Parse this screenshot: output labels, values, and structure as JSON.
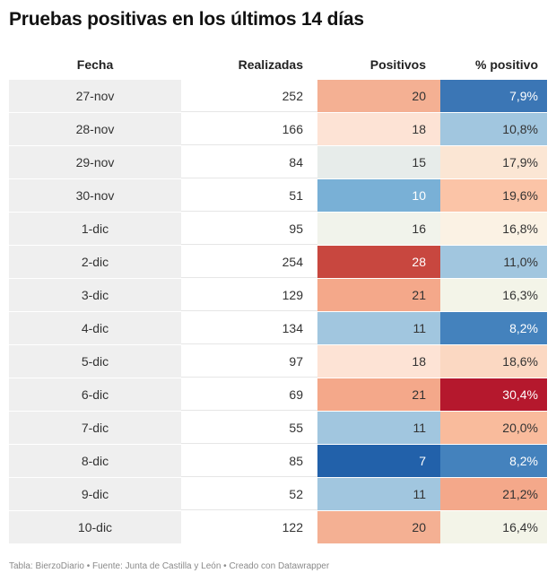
{
  "title": "Pruebas positivas en los últimos 14 días",
  "footer": "Tabla: BierzoDiario • Fuente: Junta de Castilla y León • Creado con Datawrapper",
  "chart_data": {
    "type": "table",
    "columns": [
      "Fecha",
      "Realizadas",
      "Positivos",
      "% positivo"
    ],
    "rows": [
      {
        "fecha": "27-nov",
        "realizadas": "252",
        "positivos": "20",
        "pct": "7,9%",
        "pos_color": "#f4b093",
        "pct_color": "#3b76b5",
        "pos_text": "#333333",
        "pct_text": "#ffffff"
      },
      {
        "fecha": "28-nov",
        "realizadas": "166",
        "positivos": "18",
        "pct": "10,8%",
        "pos_color": "#fde3d5",
        "pct_color": "#a1c6df",
        "pos_text": "#333333",
        "pct_text": "#333333"
      },
      {
        "fecha": "29-nov",
        "realizadas": "84",
        "positivos": "15",
        "pct": "17,9%",
        "pos_color": "#e7ecea",
        "pct_color": "#fbe6d4",
        "pos_text": "#333333",
        "pct_text": "#333333"
      },
      {
        "fecha": "30-nov",
        "realizadas": "51",
        "positivos": "10",
        "pct": "19,6%",
        "pos_color": "#79b0d6",
        "pct_color": "#fbc4a7",
        "pos_text": "#ffffff",
        "pct_text": "#333333"
      },
      {
        "fecha": "1-dic",
        "realizadas": "95",
        "positivos": "16",
        "pct": "16,8%",
        "pos_color": "#f1f3eb",
        "pct_color": "#fbf2e4",
        "pos_text": "#333333",
        "pct_text": "#333333"
      },
      {
        "fecha": "2-dic",
        "realizadas": "254",
        "positivos": "28",
        "pct": "11,0%",
        "pos_color": "#c8473f",
        "pct_color": "#a1c6df",
        "pos_text": "#ffffff",
        "pct_text": "#333333"
      },
      {
        "fecha": "3-dic",
        "realizadas": "129",
        "positivos": "21",
        "pct": "16,3%",
        "pos_color": "#f4a88a",
        "pct_color": "#f3f4e8",
        "pos_text": "#333333",
        "pct_text": "#333333"
      },
      {
        "fecha": "4-dic",
        "realizadas": "134",
        "positivos": "11",
        "pct": "8,2%",
        "pos_color": "#a1c6df",
        "pct_color": "#4482bd",
        "pos_text": "#333333",
        "pct_text": "#ffffff"
      },
      {
        "fecha": "5-dic",
        "realizadas": "97",
        "positivos": "18",
        "pct": "18,6%",
        "pos_color": "#fde3d5",
        "pct_color": "#fbd8c2",
        "pos_text": "#333333",
        "pct_text": "#333333"
      },
      {
        "fecha": "6-dic",
        "realizadas": "69",
        "positivos": "21",
        "pct": "30,4%",
        "pos_color": "#f4a88a",
        "pct_color": "#b5182d",
        "pos_text": "#333333",
        "pct_text": "#ffffff"
      },
      {
        "fecha": "7-dic",
        "realizadas": "55",
        "positivos": "11",
        "pct": "20,0%",
        "pos_color": "#a1c6df",
        "pct_color": "#f9bb9c",
        "pos_text": "#333333",
        "pct_text": "#333333"
      },
      {
        "fecha": "8-dic",
        "realizadas": "85",
        "positivos": "7",
        "pct": "8,2%",
        "pos_color": "#2261aa",
        "pct_color": "#4482bd",
        "pos_text": "#ffffff",
        "pct_text": "#ffffff"
      },
      {
        "fecha": "9-dic",
        "realizadas": "52",
        "positivos": "11",
        "pct": "21,2%",
        "pos_color": "#a1c6df",
        "pct_color": "#f4a88a",
        "pos_text": "#333333",
        "pct_text": "#333333"
      },
      {
        "fecha": "10-dic",
        "realizadas": "122",
        "positivos": "20",
        "pct": "16,4%",
        "pos_color": "#f4b093",
        "pct_color": "#f3f4e8",
        "pos_text": "#333333",
        "pct_text": "#333333"
      }
    ]
  }
}
